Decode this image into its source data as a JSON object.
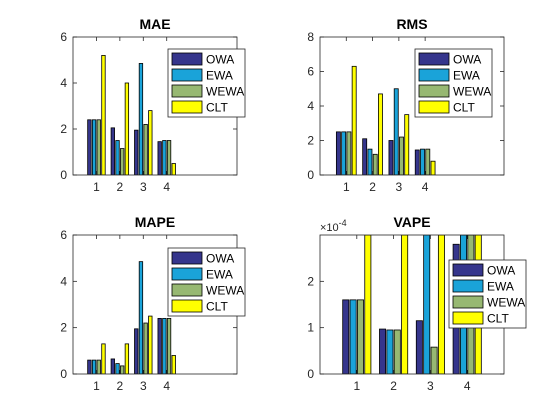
{
  "colors": {
    "OWA": "#35358c",
    "EWA": "#1aa3d9",
    "WEWA": "#97b872",
    "CLT": "#ffff00",
    "axis": "#262626"
  },
  "chart_data": [
    {
      "type": "bar",
      "title": "MAE",
      "categories": [
        "1",
        "2",
        "3",
        "4"
      ],
      "ylim": [
        0,
        6
      ],
      "yticks": [
        "0",
        "2",
        "4",
        "6"
      ],
      "legend_position": "top-right",
      "series": [
        {
          "name": "OWA",
          "values": [
            2.4,
            2.05,
            1.95,
            1.45
          ]
        },
        {
          "name": "EWA",
          "values": [
            2.4,
            1.5,
            4.85,
            1.5
          ]
        },
        {
          "name": "WEWA",
          "values": [
            2.4,
            1.15,
            2.2,
            1.5
          ]
        },
        {
          "name": "CLT",
          "values": [
            5.2,
            4.0,
            2.8,
            0.5
          ]
        }
      ]
    },
    {
      "type": "bar",
      "title": "RMS",
      "categories": [
        "1",
        "2",
        "3",
        "4"
      ],
      "ylim": [
        0,
        8
      ],
      "yticks": [
        "0",
        "2",
        "4",
        "6",
        "8"
      ],
      "legend_position": "top-right",
      "series": [
        {
          "name": "OWA",
          "values": [
            2.5,
            2.1,
            2.0,
            1.45
          ]
        },
        {
          "name": "EWA",
          "values": [
            2.5,
            1.5,
            5.0,
            1.5
          ]
        },
        {
          "name": "WEWA",
          "values": [
            2.5,
            1.2,
            2.2,
            1.5
          ]
        },
        {
          "name": "CLT",
          "values": [
            6.3,
            4.7,
            3.5,
            0.8
          ]
        }
      ]
    },
    {
      "type": "bar",
      "title": "MAPE",
      "categories": [
        "1",
        "2",
        "3",
        "4"
      ],
      "ylim": [
        0,
        6
      ],
      "yticks": [
        "0",
        "2",
        "4",
        "6"
      ],
      "legend_position": "top-right",
      "series": [
        {
          "name": "OWA",
          "values": [
            0.6,
            0.65,
            1.95,
            2.4
          ]
        },
        {
          "name": "EWA",
          "values": [
            0.6,
            0.45,
            4.85,
            2.4
          ]
        },
        {
          "name": "WEWA",
          "values": [
            0.6,
            0.35,
            2.2,
            2.4
          ]
        },
        {
          "name": "CLT",
          "values": [
            1.3,
            1.3,
            2.5,
            0.8
          ]
        }
      ]
    },
    {
      "type": "bar",
      "title": "VAPE",
      "categories": [
        "1",
        "2",
        "3",
        "4"
      ],
      "ylim": [
        0,
        3
      ],
      "yticks": [
        "0",
        "1",
        "2"
      ],
      "y_exponent_label": "×10",
      "y_exponent": "-4",
      "legend_position": "right",
      "series": [
        {
          "name": "OWA",
          "values": [
            1.6,
            0.97,
            1.15,
            2.8
          ]
        },
        {
          "name": "EWA",
          "values": [
            1.6,
            0.95,
            3.0,
            3.0
          ]
        },
        {
          "name": "WEWA",
          "values": [
            1.6,
            0.95,
            0.58,
            3.0
          ]
        },
        {
          "name": "CLT",
          "values": [
            3.0,
            3.0,
            3.0,
            3.0
          ]
        }
      ]
    }
  ]
}
